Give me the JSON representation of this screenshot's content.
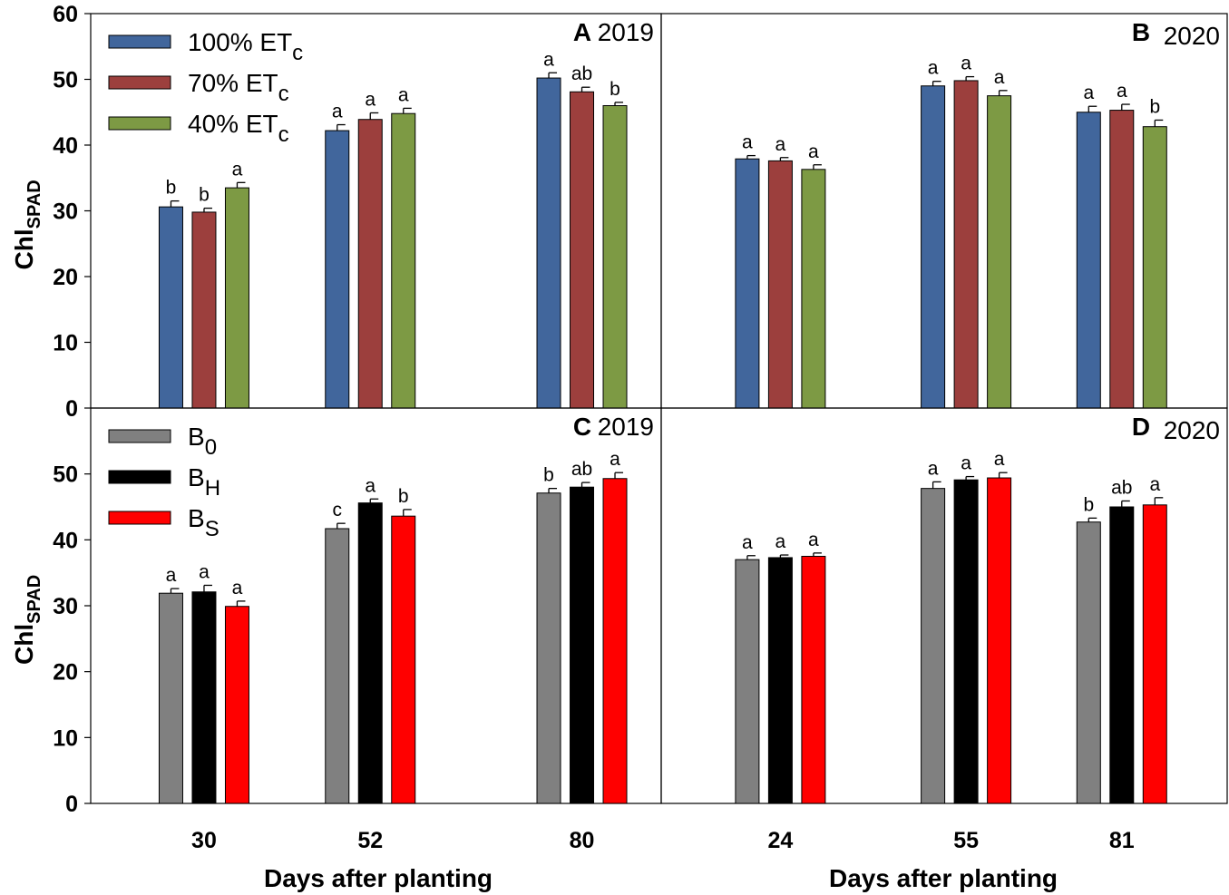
{
  "chart_data": [
    {
      "type": "bar",
      "panel": "A",
      "year": "2019",
      "xlabel": "Days after planting",
      "ylabel": "Chl",
      "ylabel_sub": "SPAD",
      "ylim": [
        0,
        60
      ],
      "yticks": [
        0,
        10,
        20,
        30,
        40,
        50,
        60
      ],
      "xlim": [
        15,
        90.5
      ],
      "categories": [
        "30",
        "52",
        "80"
      ],
      "x": [
        30,
        52,
        80
      ],
      "legend_position": "top-left",
      "series": [
        {
          "name": "100% ET",
          "sub": "c",
          "color": "#41669c",
          "values": [
            30.6,
            42.2,
            50.2
          ],
          "errors": [
            0.9,
            0.9,
            0.8
          ],
          "letters": [
            "b",
            "a",
            "a"
          ]
        },
        {
          "name": "70% ET",
          "sub": "c",
          "color": "#9c3f3d",
          "values": [
            29.8,
            43.9,
            48.1
          ],
          "errors": [
            0.6,
            1.0,
            0.7
          ],
          "letters": [
            "b",
            "a",
            "ab"
          ]
        },
        {
          "name": "40% ET",
          "sub": "c",
          "color": "#7d9a44",
          "values": [
            33.5,
            44.8,
            46.0
          ],
          "errors": [
            0.8,
            0.8,
            0.5
          ],
          "letters": [
            "a",
            "a",
            "b"
          ]
        }
      ]
    },
    {
      "type": "bar",
      "panel": "B",
      "year": "2020",
      "ylim": [
        0,
        60
      ],
      "xlim": [
        4.1,
        98.6
      ],
      "categories": [
        "24",
        "55",
        "81"
      ],
      "x": [
        24,
        55,
        81
      ],
      "series": [
        {
          "name": "100% ET",
          "color": "#41669c",
          "values": [
            37.9,
            49.0,
            45.0
          ],
          "errors": [
            0.5,
            0.7,
            0.9
          ],
          "letters": [
            "a",
            "a",
            "a"
          ]
        },
        {
          "name": "70% ET",
          "color": "#9c3f3d",
          "values": [
            37.6,
            49.8,
            45.3
          ],
          "errors": [
            0.5,
            0.6,
            0.9
          ],
          "letters": [
            "a",
            "a",
            "a"
          ]
        },
        {
          "name": "40% ET",
          "color": "#7d9a44",
          "values": [
            36.3,
            47.5,
            42.8
          ],
          "errors": [
            0.7,
            0.8,
            1.0
          ],
          "letters": [
            "a",
            "a",
            "b"
          ]
        }
      ]
    },
    {
      "type": "bar",
      "panel": "C",
      "year": "2019",
      "xlabel": "Days after planting",
      "ylabel": "Chl",
      "ylabel_sub": "SPAD",
      "ylim": [
        0,
        60
      ],
      "yticks": [
        0,
        10,
        20,
        30,
        40,
        50
      ],
      "xlim": [
        15,
        90.5
      ],
      "categories": [
        "30",
        "52",
        "80"
      ],
      "x": [
        30,
        52,
        80
      ],
      "legend_position": "top-left",
      "series": [
        {
          "name": "B",
          "sub": "0",
          "color": "#808080",
          "values": [
            31.9,
            41.7,
            47.1
          ],
          "errors": [
            0.7,
            0.8,
            0.7
          ],
          "letters": [
            "a",
            "c",
            "b"
          ]
        },
        {
          "name": "B",
          "sub": "H",
          "color": "#000000",
          "values": [
            32.1,
            45.6,
            48.0
          ],
          "errors": [
            1.0,
            0.6,
            0.7
          ],
          "letters": [
            "a",
            "a",
            "ab"
          ]
        },
        {
          "name": "B",
          "sub": "S",
          "color": "#ff0000",
          "values": [
            29.9,
            43.6,
            49.3
          ],
          "errors": [
            0.8,
            1.0,
            0.9
          ],
          "letters": [
            "a",
            "b",
            "a"
          ]
        }
      ]
    },
    {
      "type": "bar",
      "panel": "D",
      "year": "2020",
      "xlabel": "Days after planting",
      "ylim": [
        0,
        60
      ],
      "xlim": [
        4.1,
        98.6
      ],
      "categories": [
        "24",
        "55",
        "81"
      ],
      "x": [
        24,
        55,
        81
      ],
      "series": [
        {
          "name": "B",
          "sub": "0",
          "color": "#808080",
          "values": [
            37.0,
            47.8,
            42.7
          ],
          "errors": [
            0.6,
            1.0,
            0.6
          ],
          "letters": [
            "a",
            "a",
            "b"
          ]
        },
        {
          "name": "B",
          "sub": "H",
          "color": "#000000",
          "values": [
            37.3,
            49.1,
            45.0
          ],
          "errors": [
            0.4,
            0.5,
            0.9
          ],
          "letters": [
            "a",
            "a",
            "ab"
          ]
        },
        {
          "name": "B",
          "sub": "S",
          "color": "#ff0000",
          "values": [
            37.5,
            49.4,
            45.3
          ],
          "errors": [
            0.5,
            0.8,
            1.1
          ],
          "letters": [
            "a",
            "a",
            "a"
          ]
        }
      ]
    }
  ]
}
